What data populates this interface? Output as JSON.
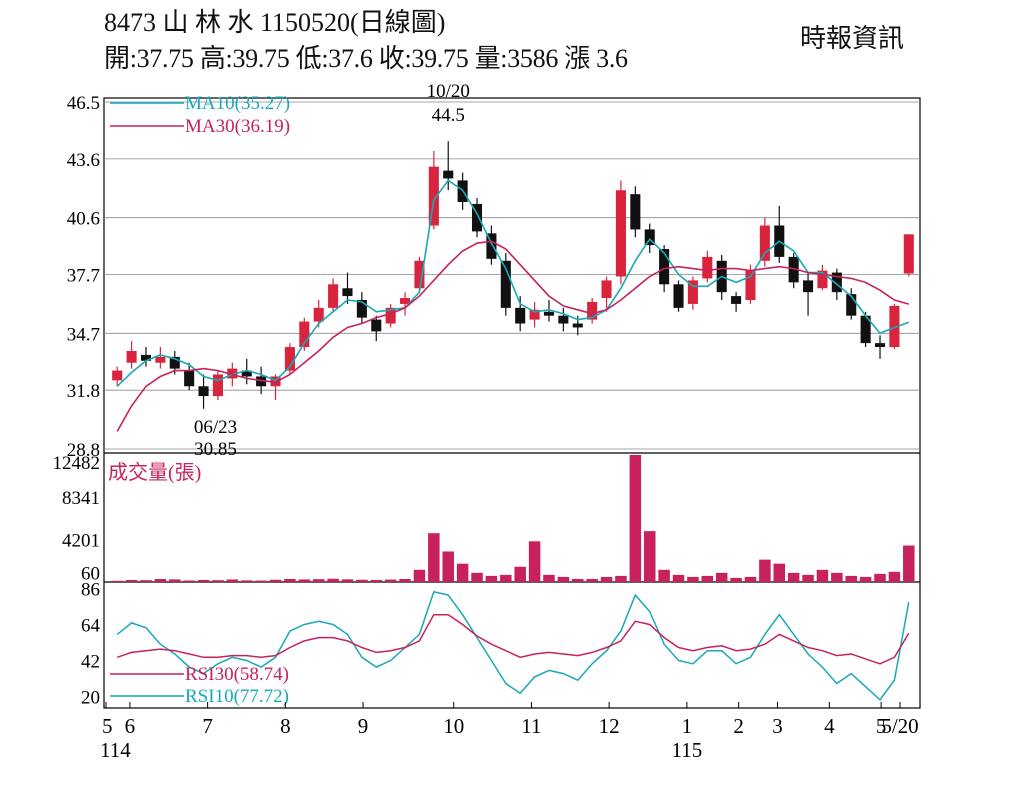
{
  "header": {
    "title": "8473  山 林 水 1150520(日線圖)",
    "quote": "開:37.75 高:39.75 低:37.6 收:39.75 量:3586 漲 3.6",
    "source": "時報資訊"
  },
  "colors": {
    "up": "#d8243c",
    "down": "#111111",
    "ma10": "#17a9b8",
    "ma30": "#c8225e",
    "volume": "#c8225e",
    "rsi10": "#17a9b8",
    "rsi30": "#c8225e",
    "grid": "#8a8a8a"
  },
  "chart_data": [
    {
      "type": "candlestick",
      "ylim": [
        28.8,
        46.5
      ],
      "yticks": [
        "46.5",
        "43.6",
        "40.6",
        "37.7",
        "34.7",
        "31.8",
        "28.8"
      ],
      "xticks": [
        "5",
        "6",
        "7",
        "8",
        "9",
        "10",
        "11",
        "12",
        "1",
        "2",
        "3",
        "4",
        "5",
        "5/20"
      ],
      "xticks_year": [
        "114",
        "115"
      ],
      "legend": [
        "MA10(35.27)",
        "MA30(36.19)"
      ],
      "annotations": [
        {
          "date": "10/20",
          "value": "44.5",
          "kind": "high"
        },
        {
          "date": "06/23",
          "value": "30.85",
          "kind": "low"
        }
      ],
      "series": [
        {
          "name": "MA10",
          "values": [
            32.0,
            32.7,
            33.3,
            33.6,
            33.4,
            33.1,
            32.5,
            32.3,
            32.6,
            32.8,
            32.6,
            32.3,
            33.0,
            34.2,
            35.2,
            35.8,
            36.4,
            36.3,
            35.8,
            35.9,
            36.0,
            36.8,
            41.5,
            42.5,
            42.0,
            40.8,
            39.3,
            38.0,
            36.2,
            35.8,
            35.9,
            35.7,
            35.4,
            35.5,
            35.9,
            37.0,
            38.4,
            39.5,
            38.8,
            37.7,
            37.1,
            37.1,
            37.6,
            37.3,
            37.6,
            38.8,
            39.4,
            38.9,
            37.8,
            37.8,
            37.2,
            36.6,
            35.6,
            34.7,
            35.0,
            35.27
          ]
        },
        {
          "name": "MA30",
          "values": [
            29.7,
            31.0,
            32.0,
            32.5,
            32.8,
            32.8,
            32.9,
            32.8,
            32.6,
            32.4,
            32.3,
            32.2,
            32.6,
            33.2,
            33.8,
            34.5,
            35.0,
            35.2,
            35.5,
            35.7,
            36.0,
            36.6,
            37.4,
            38.2,
            38.9,
            39.3,
            39.4,
            39.0,
            38.2,
            37.4,
            36.6,
            36.1,
            35.9,
            35.7,
            35.9,
            36.4,
            37.0,
            37.6,
            38.0,
            38.1,
            38.0,
            37.9,
            38.0,
            38.0,
            37.9,
            38.0,
            38.1,
            38.0,
            37.8,
            37.7,
            37.6,
            37.5,
            37.3,
            36.9,
            36.4,
            36.19
          ]
        }
      ],
      "candles": [
        [
          32.3,
          33.0,
          32.0,
          32.8
        ],
        [
          33.2,
          34.3,
          32.9,
          33.8
        ],
        [
          33.6,
          34.0,
          33.0,
          33.3
        ],
        [
          33.2,
          34.0,
          32.9,
          33.5
        ],
        [
          33.5,
          33.8,
          32.6,
          32.9
        ],
        [
          32.8,
          33.2,
          31.8,
          32.0
        ],
        [
          32.0,
          32.6,
          30.85,
          31.5
        ],
        [
          31.5,
          32.8,
          31.3,
          32.6
        ],
        [
          32.4,
          33.2,
          32.0,
          32.9
        ],
        [
          32.8,
          33.4,
          32.1,
          32.5
        ],
        [
          32.5,
          33.0,
          31.6,
          32.0
        ],
        [
          32.0,
          32.6,
          31.3,
          32.5
        ],
        [
          32.8,
          34.2,
          32.6,
          34.0
        ],
        [
          34.0,
          35.5,
          33.8,
          35.3
        ],
        [
          35.3,
          36.4,
          35.0,
          36.0
        ],
        [
          36.0,
          37.5,
          35.8,
          37.2
        ],
        [
          37.0,
          37.8,
          36.2,
          36.6
        ],
        [
          36.4,
          36.8,
          35.2,
          35.5
        ],
        [
          35.4,
          35.6,
          34.3,
          34.8
        ],
        [
          35.2,
          36.2,
          35.0,
          36.0
        ],
        [
          36.2,
          36.8,
          35.6,
          36.5
        ],
        [
          37.0,
          38.6,
          36.8,
          38.4
        ],
        [
          40.2,
          44.0,
          40.0,
          43.2
        ],
        [
          43.0,
          44.5,
          42.0,
          42.6
        ],
        [
          42.5,
          42.9,
          41.0,
          41.4
        ],
        [
          41.3,
          41.6,
          39.6,
          39.9
        ],
        [
          39.8,
          40.2,
          38.2,
          38.5
        ],
        [
          38.4,
          38.8,
          35.6,
          36.0
        ],
        [
          36.0,
          36.6,
          34.8,
          35.2
        ],
        [
          35.4,
          36.3,
          35.0,
          35.9
        ],
        [
          35.8,
          36.4,
          35.3,
          35.6
        ],
        [
          35.6,
          36.0,
          34.8,
          35.2
        ],
        [
          35.2,
          35.6,
          34.6,
          35.0
        ],
        [
          35.4,
          36.5,
          35.2,
          36.3
        ],
        [
          36.5,
          37.6,
          35.8,
          37.4
        ],
        [
          37.6,
          42.5,
          37.2,
          42.0
        ],
        [
          41.8,
          42.2,
          39.6,
          40.0
        ],
        [
          40.0,
          40.3,
          38.8,
          39.2
        ],
        [
          39.0,
          39.2,
          36.8,
          37.2
        ],
        [
          37.2,
          37.4,
          35.8,
          36.0
        ],
        [
          36.2,
          37.6,
          35.9,
          37.4
        ],
        [
          37.5,
          38.9,
          37.3,
          38.6
        ],
        [
          38.4,
          38.7,
          36.4,
          36.8
        ],
        [
          36.6,
          36.8,
          35.8,
          36.2
        ],
        [
          36.4,
          38.2,
          36.2,
          37.9
        ],
        [
          38.4,
          40.6,
          38.1,
          40.2
        ],
        [
          40.2,
          41.2,
          38.3,
          38.6
        ],
        [
          38.6,
          38.8,
          37.0,
          37.3
        ],
        [
          37.4,
          37.8,
          35.6,
          36.8
        ],
        [
          37.0,
          38.2,
          36.9,
          37.9
        ],
        [
          37.8,
          38.0,
          36.4,
          36.8
        ],
        [
          36.7,
          37.0,
          35.4,
          35.6
        ],
        [
          35.6,
          35.8,
          34.0,
          34.2
        ],
        [
          34.2,
          34.6,
          33.4,
          34.0
        ],
        [
          34.0,
          36.2,
          33.9,
          36.1
        ],
        [
          37.75,
          39.75,
          37.6,
          39.75
        ]
      ]
    },
    {
      "type": "bar",
      "title": "成交量(張)",
      "ylim": [
        0,
        12482
      ],
      "yticks": [
        "12482",
        "8341",
        "4201",
        "60"
      ],
      "values": [
        120,
        200,
        180,
        300,
        260,
        150,
        200,
        180,
        250,
        160,
        140,
        220,
        300,
        250,
        280,
        320,
        260,
        220,
        200,
        240,
        300,
        1200,
        4800,
        3000,
        1800,
        900,
        600,
        700,
        1500,
        4000,
        700,
        500,
        300,
        300,
        500,
        600,
        12482,
        5000,
        1200,
        700,
        500,
        600,
        900,
        400,
        500,
        2200,
        1800,
        900,
        700,
        1200,
        900,
        600,
        500,
        800,
        1000,
        3586
      ]
    },
    {
      "type": "line",
      "ylim": [
        13,
        90
      ],
      "yticks": [
        "86",
        "64",
        "42",
        "20"
      ],
      "legend": [
        "RSI30(58.74)",
        "RSI10(77.72)"
      ],
      "series": [
        {
          "name": "RSI10",
          "values": [
            58,
            65,
            62,
            52,
            46,
            38,
            34,
            40,
            44,
            42,
            38,
            44,
            60,
            64,
            66,
            64,
            58,
            44,
            38,
            42,
            50,
            58,
            84,
            82,
            70,
            56,
            42,
            28,
            22,
            32,
            36,
            34,
            30,
            40,
            48,
            60,
            82,
            72,
            52,
            42,
            40,
            48,
            48,
            40,
            44,
            58,
            70,
            58,
            46,
            38,
            28,
            34,
            26,
            18,
            30,
            77.72
          ]
        },
        {
          "name": "RSI30",
          "values": [
            44,
            47,
            48,
            49,
            48,
            46,
            44,
            44,
            45,
            45,
            44,
            45,
            50,
            54,
            56,
            56,
            54,
            50,
            47,
            48,
            50,
            54,
            70,
            70,
            64,
            57,
            52,
            48,
            44,
            46,
            47,
            46,
            45,
            47,
            50,
            54,
            66,
            64,
            56,
            50,
            48,
            50,
            51,
            48,
            49,
            52,
            58,
            54,
            50,
            48,
            45,
            46,
            43,
            40,
            44,
            58.74
          ]
        }
      ]
    }
  ]
}
